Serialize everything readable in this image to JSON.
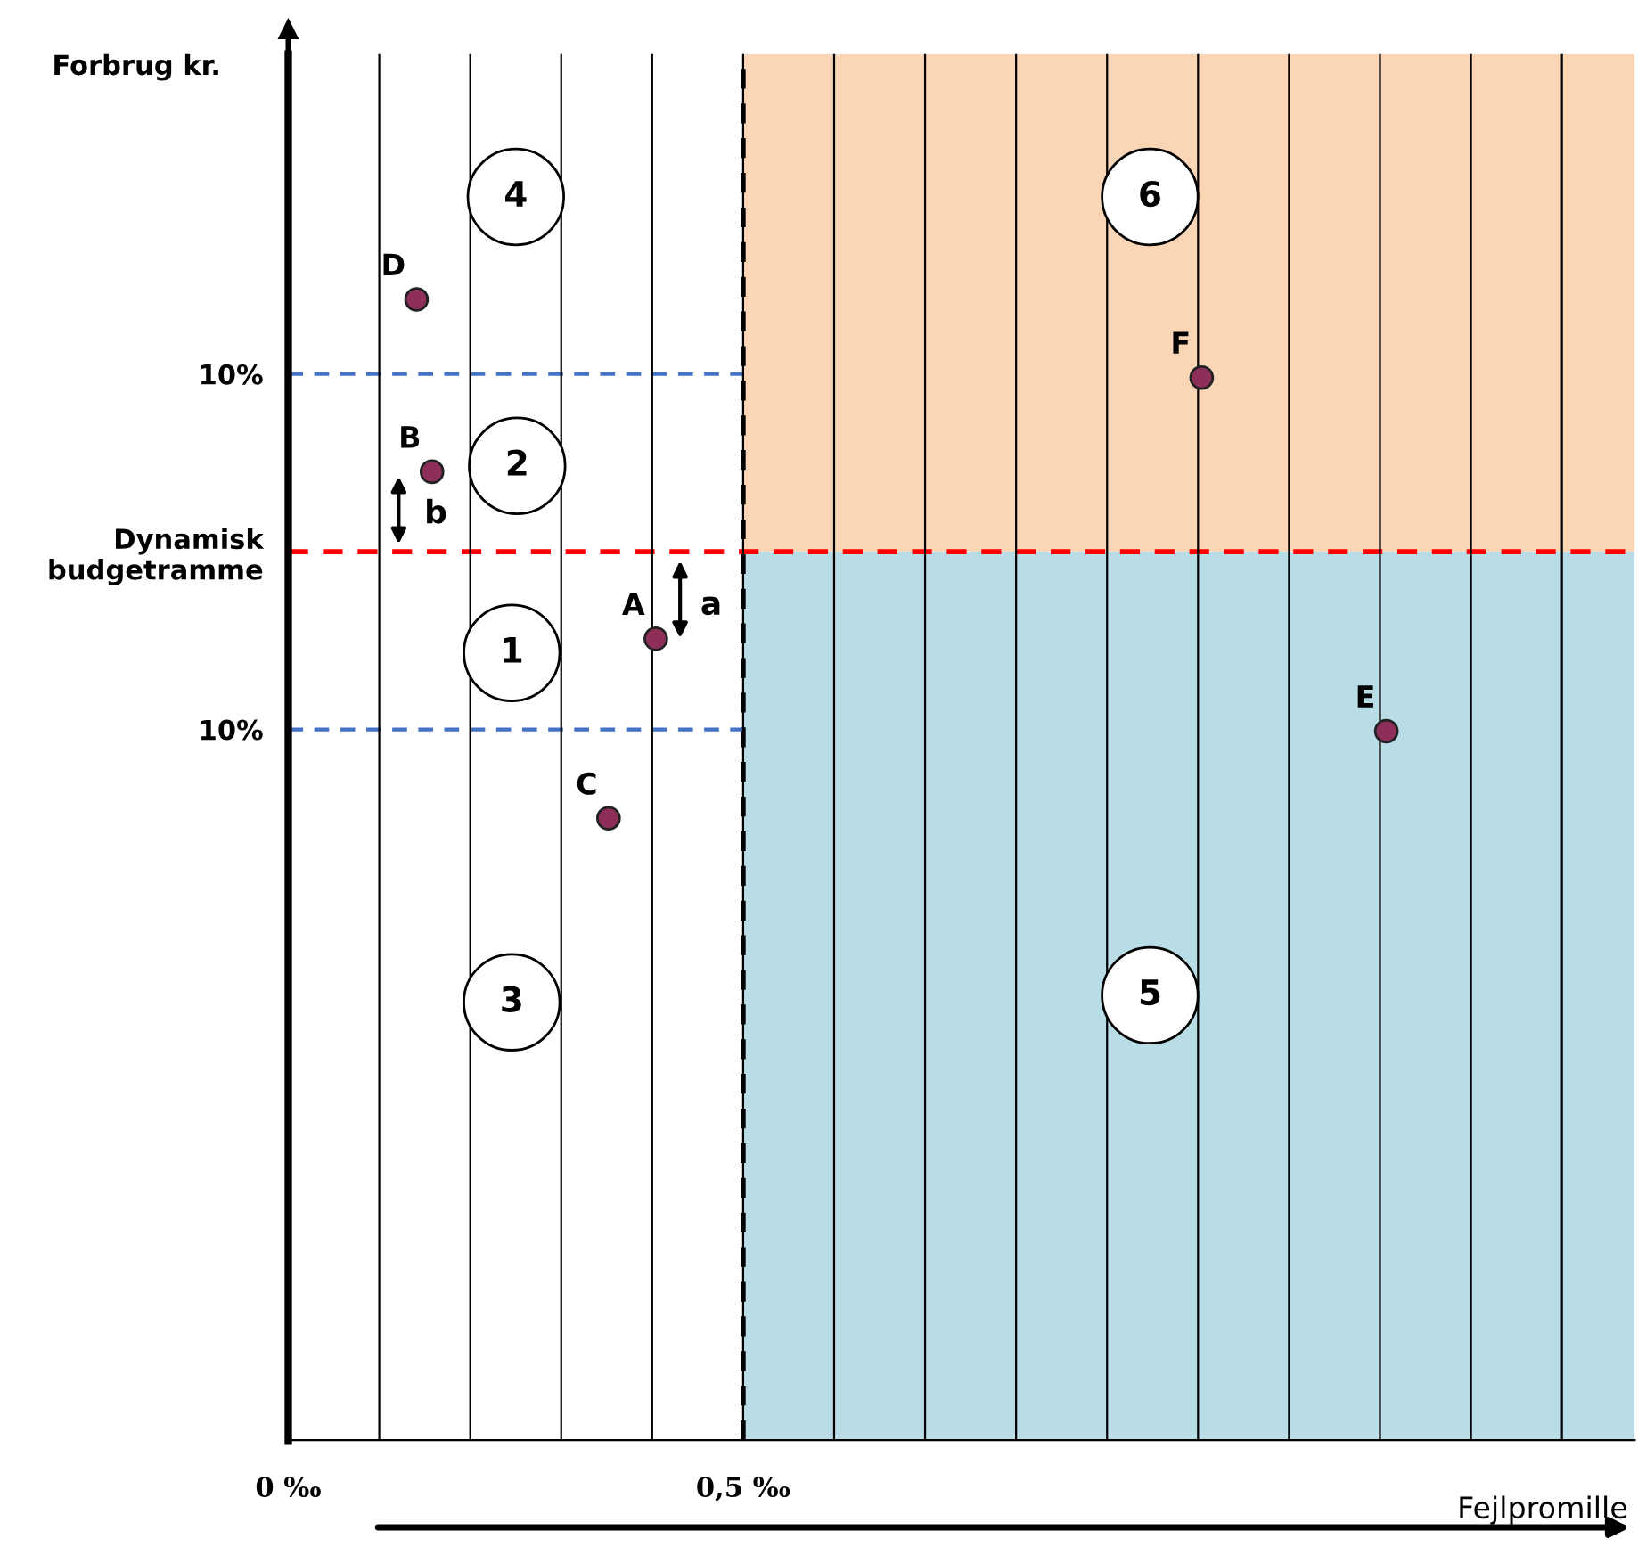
{
  "chart_data": {
    "type": "scatter",
    "xlabel": "Fejlpromille",
    "ylabel": "Forbrug kr.",
    "xlim": [
      0,
      1.48
    ],
    "ylim": [
      -50,
      28
    ],
    "xticks": [
      {
        "value": 0,
        "label": "0 ‰"
      },
      {
        "value": 0.1,
        "label": null
      },
      {
        "value": 0.2,
        "label": null
      },
      {
        "value": 0.3,
        "label": null
      },
      {
        "value": 0.4,
        "label": null
      },
      {
        "value": 0.5,
        "label": "0,5 ‰"
      },
      {
        "value": 0.6,
        "label": null
      },
      {
        "value": 0.7,
        "label": null
      },
      {
        "value": 0.8,
        "label": null
      },
      {
        "value": 0.9,
        "label": null
      },
      {
        "value": 1.0,
        "label": null
      },
      {
        "value": 1.1,
        "label": null
      },
      {
        "value": 1.2,
        "label": null
      },
      {
        "value": 1.3,
        "label": null
      },
      {
        "value": 1.4,
        "label": null
      }
    ],
    "yticks": [
      {
        "value": 10,
        "label": "10%"
      },
      {
        "value": 0,
        "label": "Dynamisk\nbudgetramme"
      },
      {
        "value": -10,
        "label": "10%"
      }
    ],
    "grid": "x",
    "marker": "circle",
    "series": [
      {
        "color": "#8e2f5a",
        "x": [
          0.141,
          0.158,
          0.404,
          0.352,
          1.004,
          1.207
        ],
        "values": [
          14.2,
          4.5,
          -4.9,
          -15,
          9.8,
          -10.1
        ]
      }
    ],
    "ref_lines": [
      {
        "axis": "x",
        "value": 0.5,
        "color": "#000000",
        "line_style": "dashed"
      },
      {
        "axis": "y",
        "value": 0,
        "color": "#ff0000",
        "line_style": "dashed"
      },
      {
        "axis": "y",
        "value": 10,
        "color": "#4472c4",
        "line_style": "dashed"
      },
      {
        "axis": "y",
        "value": -10,
        "color": "#4472c4",
        "line_style": "dashed"
      }
    ],
    "bands": [
      {
        "axis": "y",
        "from": 0,
        "to": 28,
        "color": "#fad5b6"
      },
      {
        "axis": "y",
        "from": -50,
        "to": 0,
        "color": "#b8dde6"
      }
    ],
    "annotations": [
      {
        "text": "D",
        "x": 0.141,
        "y": 14.2
      },
      {
        "text": "B",
        "x": 0.158,
        "y": 4.5
      },
      {
        "text": "A",
        "x": 0.404,
        "y": -4.9
      },
      {
        "text": "C",
        "x": 0.352,
        "y": -15
      },
      {
        "text": "F",
        "x": 1.004,
        "y": 9.8
      },
      {
        "text": "E",
        "x": 1.207,
        "y": -10.1
      },
      "1",
      "2",
      "3",
      "4",
      "5",
      "6",
      "a",
      "b"
    ]
  }
}
